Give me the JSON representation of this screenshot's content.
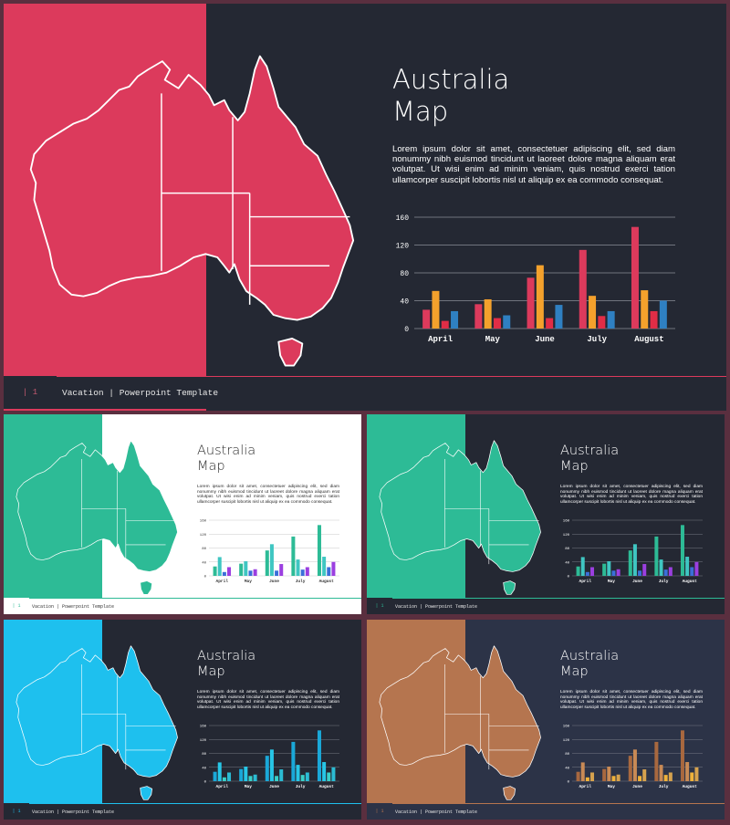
{
  "slides": [
    {
      "title_line1": "Australia",
      "title_line2": "Map",
      "body": "Lorem ipsum dolor sit amet, consectetuer adipiscing elit, sed diam nonummy nibh euismod tincidunt ut laoreet dolore magna aliquam erat volutpat. Ut wisi enim ad minim veniam, quis nostrud exerci tation ullamcorper suscipit lobortis nisl ut aliquip ex ea commodo consequat.",
      "page_number": "1",
      "footer_text": "Vacation | Powerpoint Template",
      "colors": {
        "band": "#dc3a5c",
        "background": "#242833",
        "map": "#dc3a5c",
        "text": "#ffffff",
        "chart_text": "#ffffff",
        "grid": "#8a8e98",
        "footer_bg": "#242833",
        "footer_text": "#e8e8e8"
      },
      "chart_data": {
        "type": "bar",
        "categories": [
          "April",
          "May",
          "June",
          "July",
          "August"
        ],
        "ylim": [
          0,
          160
        ],
        "yticks": [
          0,
          40,
          80,
          120,
          160
        ],
        "grid": true,
        "series": [
          {
            "values": [
              27,
              35,
              73,
              113,
              146
            ],
            "color": "#dc3a5c"
          },
          {
            "values": [
              54,
              42,
              91,
              47,
              55
            ],
            "color": "#f4a12c"
          },
          {
            "values": [
              11,
              15,
              15,
              18,
              25
            ],
            "color": "#e12d46"
          },
          {
            "values": [
              25,
              19,
              34,
              25,
              40
            ],
            "color": "#2f80c2"
          }
        ]
      }
    },
    {
      "title_line1": "Australia",
      "title_line2": "Map",
      "body": "Lorem ipsum dolor sit amet, consectetuer adipiscing elit, sed diam nonummy nibh euismod tincidunt ut laoreet dolore magna aliquam erat volutpat. Ut wisi enim ad minim veniam, quis nostrud exerci tation ullamcorper suscipit lobortis nisl ut aliquip ex ea commodo consequat.",
      "page_number": "1",
      "footer_text": "Vacation | Powerpoint Template",
      "colors": {
        "band": "#2dbb96",
        "background": "#ffffff",
        "map": "#2dbb96",
        "text": "#2b2b2b",
        "chart_text": "#333333",
        "grid": "#bbbbbb",
        "footer_bg": "#ffffff",
        "footer_text": "#333333"
      },
      "chart_data": {
        "type": "bar",
        "categories": [
          "April",
          "May",
          "June",
          "July",
          "August"
        ],
        "ylim": [
          0,
          160
        ],
        "yticks": [
          0,
          40,
          80,
          120,
          160
        ],
        "grid": true,
        "series": [
          {
            "values": [
              27,
              35,
              73,
              113,
              146
            ],
            "color": "#2dbb96"
          },
          {
            "values": [
              54,
              42,
              91,
              47,
              55
            ],
            "color": "#3fc6c2"
          },
          {
            "values": [
              11,
              15,
              15,
              18,
              25
            ],
            "color": "#3b6fd8"
          },
          {
            "values": [
              25,
              19,
              34,
              25,
              40
            ],
            "color": "#9b3fe0"
          }
        ]
      }
    },
    {
      "title_line1": "Australia",
      "title_line2": "Map",
      "body": "Lorem ipsum dolor sit amet, consectetuer adipiscing elit, sed diam nonummy nibh euismod tincidunt ut laoreet dolore magna aliquam erat volutpat. Ut wisi enim ad minim veniam, quis nostrud exerci tation ullamcorper suscipit lobortis nisl ut aliquip ex ea commodo consequat.",
      "page_number": "1",
      "footer_text": "Vacation | Powerpoint Template",
      "colors": {
        "band": "#2dbb96",
        "background": "#242833",
        "map": "#2dbb96",
        "text": "#ffffff",
        "chart_text": "#ffffff",
        "grid": "#8a8e98",
        "footer_bg": "#242833",
        "footer_text": "#e8e8e8"
      },
      "chart_data": {
        "type": "bar",
        "categories": [
          "April",
          "May",
          "June",
          "July",
          "August"
        ],
        "ylim": [
          0,
          160
        ],
        "yticks": [
          0,
          40,
          80,
          120,
          160
        ],
        "grid": true,
        "series": [
          {
            "values": [
              27,
              35,
              73,
              113,
              146
            ],
            "color": "#2dbb96"
          },
          {
            "values": [
              54,
              42,
              91,
              47,
              55
            ],
            "color": "#3fc6c2"
          },
          {
            "values": [
              11,
              15,
              15,
              18,
              25
            ],
            "color": "#3b6fd8"
          },
          {
            "values": [
              25,
              19,
              34,
              25,
              40
            ],
            "color": "#9b3fe0"
          }
        ]
      }
    },
    {
      "title_line1": "Australia",
      "title_line2": "Map",
      "body": "Lorem ipsum dolor sit amet, consectetuer adipiscing elit, sed diam nonummy nibh euismod tincidunt ut laoreet dolore magna aliquam erat volutpat. Ut wisi enim ad minim veniam, quis nostrud exerci tation ullamcorper suscipit lobortis nisl ut aliquip ex ea commodo consequat.",
      "page_number": "1",
      "footer_text": "Vacation | Powerpoint Template",
      "colors": {
        "band": "#1ec0ee",
        "background": "#242833",
        "map": "#1ec0ee",
        "text": "#ffffff",
        "chart_text": "#ffffff",
        "grid": "#8a8e98",
        "footer_bg": "#242833",
        "footer_text": "#e8e8e8"
      },
      "chart_data": {
        "type": "bar",
        "categories": [
          "April",
          "May",
          "June",
          "July",
          "August"
        ],
        "ylim": [
          0,
          160
        ],
        "yticks": [
          0,
          40,
          80,
          120,
          160
        ],
        "grid": true,
        "series": [
          {
            "values": [
              27,
              35,
              73,
              113,
              146
            ],
            "color": "#1aa8d8"
          },
          {
            "values": [
              54,
              42,
              91,
              47,
              55
            ],
            "color": "#27c6e6"
          },
          {
            "values": [
              11,
              15,
              15,
              18,
              25
            ],
            "color": "#3ad0c8"
          },
          {
            "values": [
              25,
              19,
              34,
              25,
              40
            ],
            "color": "#2bbbd3"
          }
        ]
      }
    },
    {
      "title_line1": "Australia",
      "title_line2": "Map",
      "body": "Lorem ipsum dolor sit amet, consectetuer adipiscing elit, sed diam nonummy nibh euismod tincidunt ut laoreet dolore magna aliquam erat volutpat. Ut wisi enim ad minim veniam, quis nostrud exerci tation ullamcorper suscipit lobortis nisl ut aliquip ex ea commodo consequat.",
      "page_number": "1",
      "footer_text": "Vacation | Powerpoint Template",
      "colors": {
        "band": "#b5754f",
        "background": "#2c3347",
        "map": "#b5754f",
        "text": "#ffffff",
        "chart_text": "#ffffff",
        "grid": "#8a8e98",
        "footer_bg": "#2c3347",
        "footer_text": "#e8e8e8"
      },
      "chart_data": {
        "type": "bar",
        "categories": [
          "April",
          "May",
          "June",
          "July",
          "August"
        ],
        "ylim": [
          0,
          160
        ],
        "yticks": [
          0,
          40,
          80,
          120,
          160
        ],
        "grid": true,
        "series": [
          {
            "values": [
              27,
              35,
              73,
              113,
              146
            ],
            "color": "#a8683f"
          },
          {
            "values": [
              54,
              42,
              91,
              47,
              55
            ],
            "color": "#c98a55"
          },
          {
            "values": [
              11,
              15,
              15,
              18,
              25
            ],
            "color": "#f0b23a"
          },
          {
            "values": [
              25,
              19,
              34,
              25,
              40
            ],
            "color": "#d6a24e"
          }
        ]
      }
    }
  ]
}
